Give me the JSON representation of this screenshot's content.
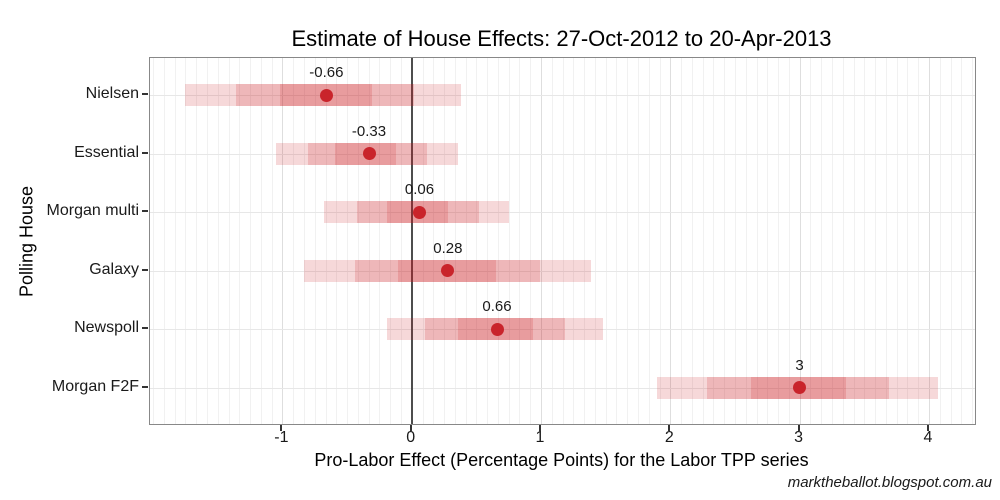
{
  "page": {
    "background": "#ffffff"
  },
  "chart_data": {
    "type": "scatter",
    "variant": "dot-with-nested-credible-intervals",
    "title": "Estimate of House Effects: 27-Oct-2012 to 20-Apr-2013",
    "xlabel": "Pro-Labor Effect (Percentage Points) for the Labor TPP series",
    "ylabel": "Polling House",
    "caption": "marktheballot.blogspot.com.au",
    "xlim": [
      -2.02,
      4.36
    ],
    "x_ticks": [
      -1,
      0,
      1,
      2,
      3,
      4
    ],
    "x_tick_labels": [
      "-1",
      "0",
      "1",
      "2",
      "3",
      "4"
    ],
    "zero_reference_line": 0,
    "grid": {
      "minor_step": 0.0833,
      "major_at_integers": true,
      "horizontal_at_rows": true
    },
    "legend_position": "none",
    "categories": [
      "Nielsen",
      "Essential",
      "Morgan multi",
      "Galaxy",
      "Newspoll",
      "Morgan F2F"
    ],
    "houses": [
      {
        "label": "Nielsen",
        "estimate": -0.66,
        "estimate_label": "-0.66",
        "inner": [
          -1.02,
          -0.31
        ],
        "middle": [
          -1.36,
          0.02
        ],
        "outer": [
          -1.75,
          0.38
        ]
      },
      {
        "label": "Essential",
        "estimate": -0.33,
        "estimate_label": "-0.33",
        "inner": [
          -0.59,
          -0.12
        ],
        "middle": [
          -0.8,
          0.12
        ],
        "outer": [
          -1.05,
          0.36
        ]
      },
      {
        "label": "Morgan multi",
        "estimate": 0.06,
        "estimate_label": "0.06",
        "inner": [
          -0.19,
          0.28
        ],
        "middle": [
          -0.42,
          0.52
        ],
        "outer": [
          -0.68,
          0.75
        ]
      },
      {
        "label": "Galaxy",
        "estimate": 0.28,
        "estimate_label": "0.28",
        "inner": [
          -0.11,
          0.65
        ],
        "middle": [
          -0.44,
          0.99
        ],
        "outer": [
          -0.83,
          1.39
        ]
      },
      {
        "label": "Newspoll",
        "estimate": 0.66,
        "estimate_label": "0.66",
        "inner": [
          0.36,
          0.94
        ],
        "middle": [
          0.1,
          1.19
        ],
        "outer": [
          -0.19,
          1.48
        ]
      },
      {
        "label": "Morgan F2F",
        "estimate": 3,
        "estimate_label": "3",
        "inner": [
          2.62,
          3.36
        ],
        "middle": [
          2.28,
          3.69
        ],
        "outer": [
          1.9,
          4.07
        ]
      }
    ],
    "colors": {
      "point": "#C9242B",
      "band_rgba": "rgba(203,24,29,0.17)",
      "zero_line": "#4d4d4d",
      "panel_border": "#888888",
      "grid_minor": "#f1f1f1",
      "grid_major": "#dedede",
      "text": "#1a1a1a"
    }
  }
}
